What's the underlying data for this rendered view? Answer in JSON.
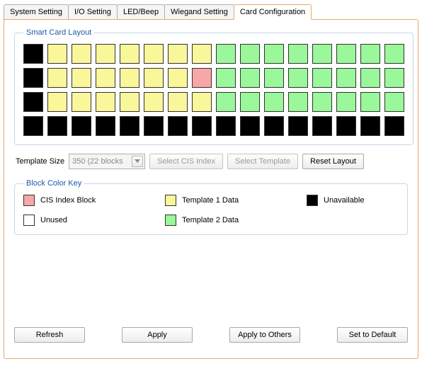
{
  "tabs": {
    "items": [
      {
        "label": "System Setting",
        "active": false
      },
      {
        "label": "I/O Setting",
        "active": false
      },
      {
        "label": "LED/Beep",
        "active": false
      },
      {
        "label": "Wiegand Setting",
        "active": false
      },
      {
        "label": "Card Configuration",
        "active": true
      }
    ]
  },
  "layout_fieldset": {
    "legend": "Smart Card Layout"
  },
  "colors": {
    "unavailable": "#000000",
    "template1": "#faf79a",
    "template2": "#9af79a",
    "cis_index": "#f7a7a7",
    "unused": "#ffffff",
    "cell_border": "#333333"
  },
  "grid": {
    "cols": 16,
    "rows": 4,
    "cells": [
      "black",
      "yellow",
      "yellow",
      "yellow",
      "yellow",
      "yellow",
      "yellow",
      "yellow",
      "green",
      "green",
      "green",
      "green",
      "green",
      "green",
      "green",
      "green",
      "black",
      "yellow",
      "yellow",
      "yellow",
      "yellow",
      "yellow",
      "yellow",
      "pink",
      "green",
      "green",
      "green",
      "green",
      "green",
      "green",
      "green",
      "green",
      "black",
      "yellow",
      "yellow",
      "yellow",
      "yellow",
      "yellow",
      "yellow",
      "yellow",
      "green",
      "green",
      "green",
      "green",
      "green",
      "green",
      "green",
      "green",
      "black",
      "black",
      "black",
      "black",
      "black",
      "black",
      "black",
      "black",
      "black",
      "black",
      "black",
      "black",
      "black",
      "black",
      "black",
      "black"
    ]
  },
  "controls": {
    "template_size_label": "Template Size",
    "template_size_value": "350 (22 blocks",
    "select_cis_label": "Select CIS Index",
    "select_template_label": "Select Template",
    "reset_layout_label": "Reset Layout"
  },
  "key_fieldset": {
    "legend": "Block Color Key"
  },
  "key": {
    "cis": "CIS Index Block",
    "t1": "Template 1 Data",
    "unavailable": "Unavailable",
    "unused": "Unused",
    "t2": "Template 2 Data"
  },
  "bottom": {
    "refresh": "Refresh",
    "apply": "Apply",
    "apply_others": "Apply to Others",
    "set_default": "Set to Default"
  }
}
